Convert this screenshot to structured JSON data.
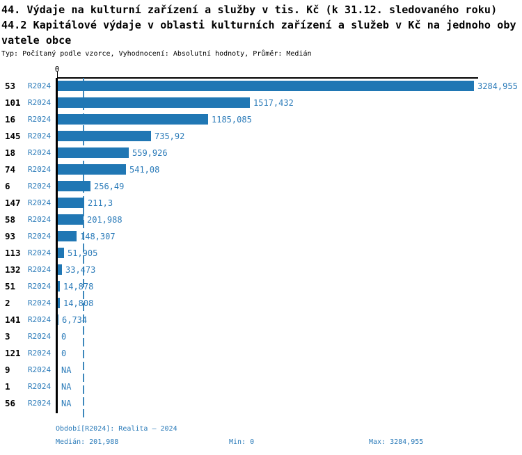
{
  "title": {
    "line1": "44. Výdaje na kulturní zařízení a služby v tis. Kč (k 31.12. sledovaného roku)",
    "line2": "44.2 Kapitálové výdaje v oblasti kulturních zařízení a služeb v Kč na jednoho oby",
    "line3": "vatele obce",
    "meta": "Typ: Počítaný podle vzorce, Vyhodnocení: Absolutní hodnoty, Průměr: Medián"
  },
  "chart_data": {
    "type": "bar",
    "orientation": "horizontal",
    "axis_tick_label": "0",
    "period_label": "R2024",
    "categories": [
      "53",
      "101",
      "16",
      "145",
      "18",
      "74",
      "6",
      "147",
      "58",
      "93",
      "113",
      "132",
      "51",
      "2",
      "141",
      "3",
      "121",
      "9",
      "1",
      "56"
    ],
    "values": [
      3284.955,
      1517.432,
      1185.085,
      735.92,
      559.926,
      541.08,
      256.49,
      211.3,
      201.988,
      148.307,
      51.905,
      33.473,
      14.878,
      14.808,
      6.734,
      0,
      0,
      null,
      null,
      null
    ],
    "value_labels": [
      "3284,955",
      "1517,432",
      "1185,085",
      "735,92",
      "559,926",
      "541,08",
      "256,49",
      "211,3",
      "201,988",
      "148,307",
      "51,905",
      "33,473",
      "14,878",
      "14,808",
      "6,734",
      "0",
      "0",
      "NA",
      "NA",
      "NA"
    ],
    "series": [
      {
        "name": "R2024",
        "values": [
          3284.955,
          1517.432,
          1185.085,
          735.92,
          559.926,
          541.08,
          256.49,
          211.3,
          201.988,
          148.307,
          51.905,
          33.473,
          14.878,
          14.808,
          6.734,
          0,
          0,
          null,
          null,
          null
        ]
      }
    ],
    "xlim": [
      0,
      3284.955
    ],
    "median_reference_line": 201.988,
    "grid": false,
    "legend_position": "none",
    "bar_color": "#2077b4",
    "text_color": "#2b7bb9",
    "median_line_color": "#3d87bb",
    "axis_color": "#000000"
  },
  "footer": {
    "period": "Období[R2024]: Realita – 2024",
    "median": "Medián: 201,988",
    "min": "Min: 0",
    "max": "Max: 3284,955"
  }
}
